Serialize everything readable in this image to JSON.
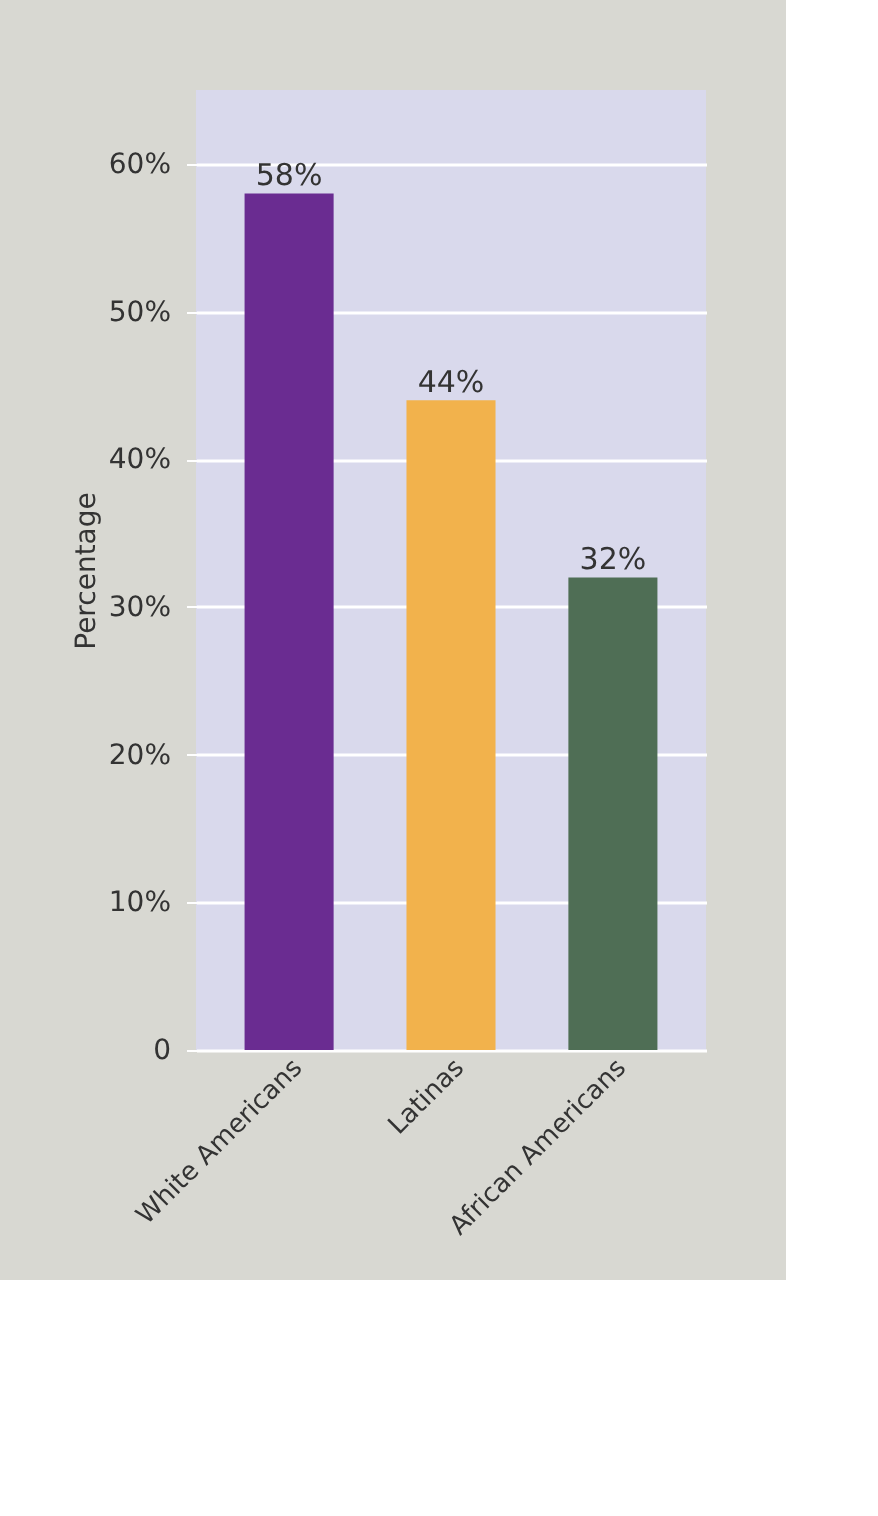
{
  "chart_data": {
    "type": "bar",
    "ylabel": "Percentage",
    "categories": [
      "White Americans",
      "Latinas",
      "African Americans"
    ],
    "values": [
      58,
      44,
      32
    ],
    "colors": [
      "#6a2c91",
      "#f2b24c",
      "#4f6e55"
    ],
    "value_labels": [
      "58%",
      "44%",
      "32%"
    ],
    "ylim": [
      0,
      65
    ],
    "yticks": [
      {
        "value": 0,
        "label": "0"
      },
      {
        "value": 10,
        "label": "10%"
      },
      {
        "value": 20,
        "label": "20%"
      },
      {
        "value": 30,
        "label": "30%"
      },
      {
        "value": 40,
        "label": "40%"
      },
      {
        "value": 50,
        "label": "50%"
      },
      {
        "value": 60,
        "label": "60%"
      }
    ],
    "grid": "y"
  }
}
